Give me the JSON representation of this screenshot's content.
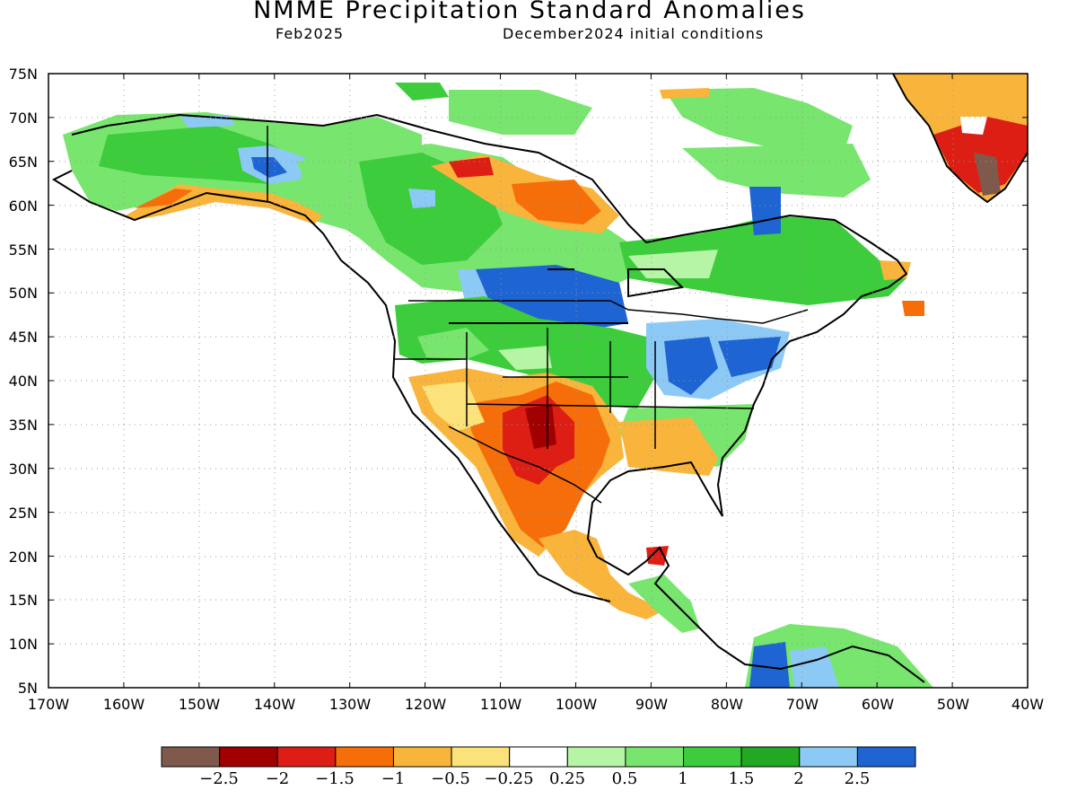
{
  "title": "NMME Precipitation Standard Anomalies",
  "subtitle_left": "Feb2025",
  "subtitle_right": "December2024 initial conditions",
  "map": {
    "lon_range": [
      -170,
      -40
    ],
    "lat_range": [
      5,
      75
    ],
    "lon_labels": [
      "170W",
      "160W",
      "150W",
      "140W",
      "130W",
      "120W",
      "110W",
      "100W",
      "90W",
      "80W",
      "70W",
      "60W",
      "50W",
      "40W"
    ],
    "lat_labels": [
      "75N",
      "70N",
      "65N",
      "60N",
      "55N",
      "50N",
      "45N",
      "40N",
      "35N",
      "30N",
      "25N",
      "20N",
      "15N",
      "10N",
      "5N"
    ],
    "grid": "dotted"
  },
  "colorbar": {
    "colors": [
      "#7f5a4c",
      "#a00000",
      "#dc1e14",
      "#f56e0a",
      "#f9b43c",
      "#fbe27a",
      "#ffffff",
      "#b5f5a5",
      "#78e56e",
      "#3ccc3c",
      "#22a822",
      "#8ccaf5",
      "#1e64d2"
    ],
    "labels": [
      "−2.5",
      "−2",
      "−1.5",
      "−1",
      "−0.5",
      "−0.25",
      "0.25",
      "0.5",
      "1",
      "1.5",
      "2",
      "2.5"
    ]
  }
}
